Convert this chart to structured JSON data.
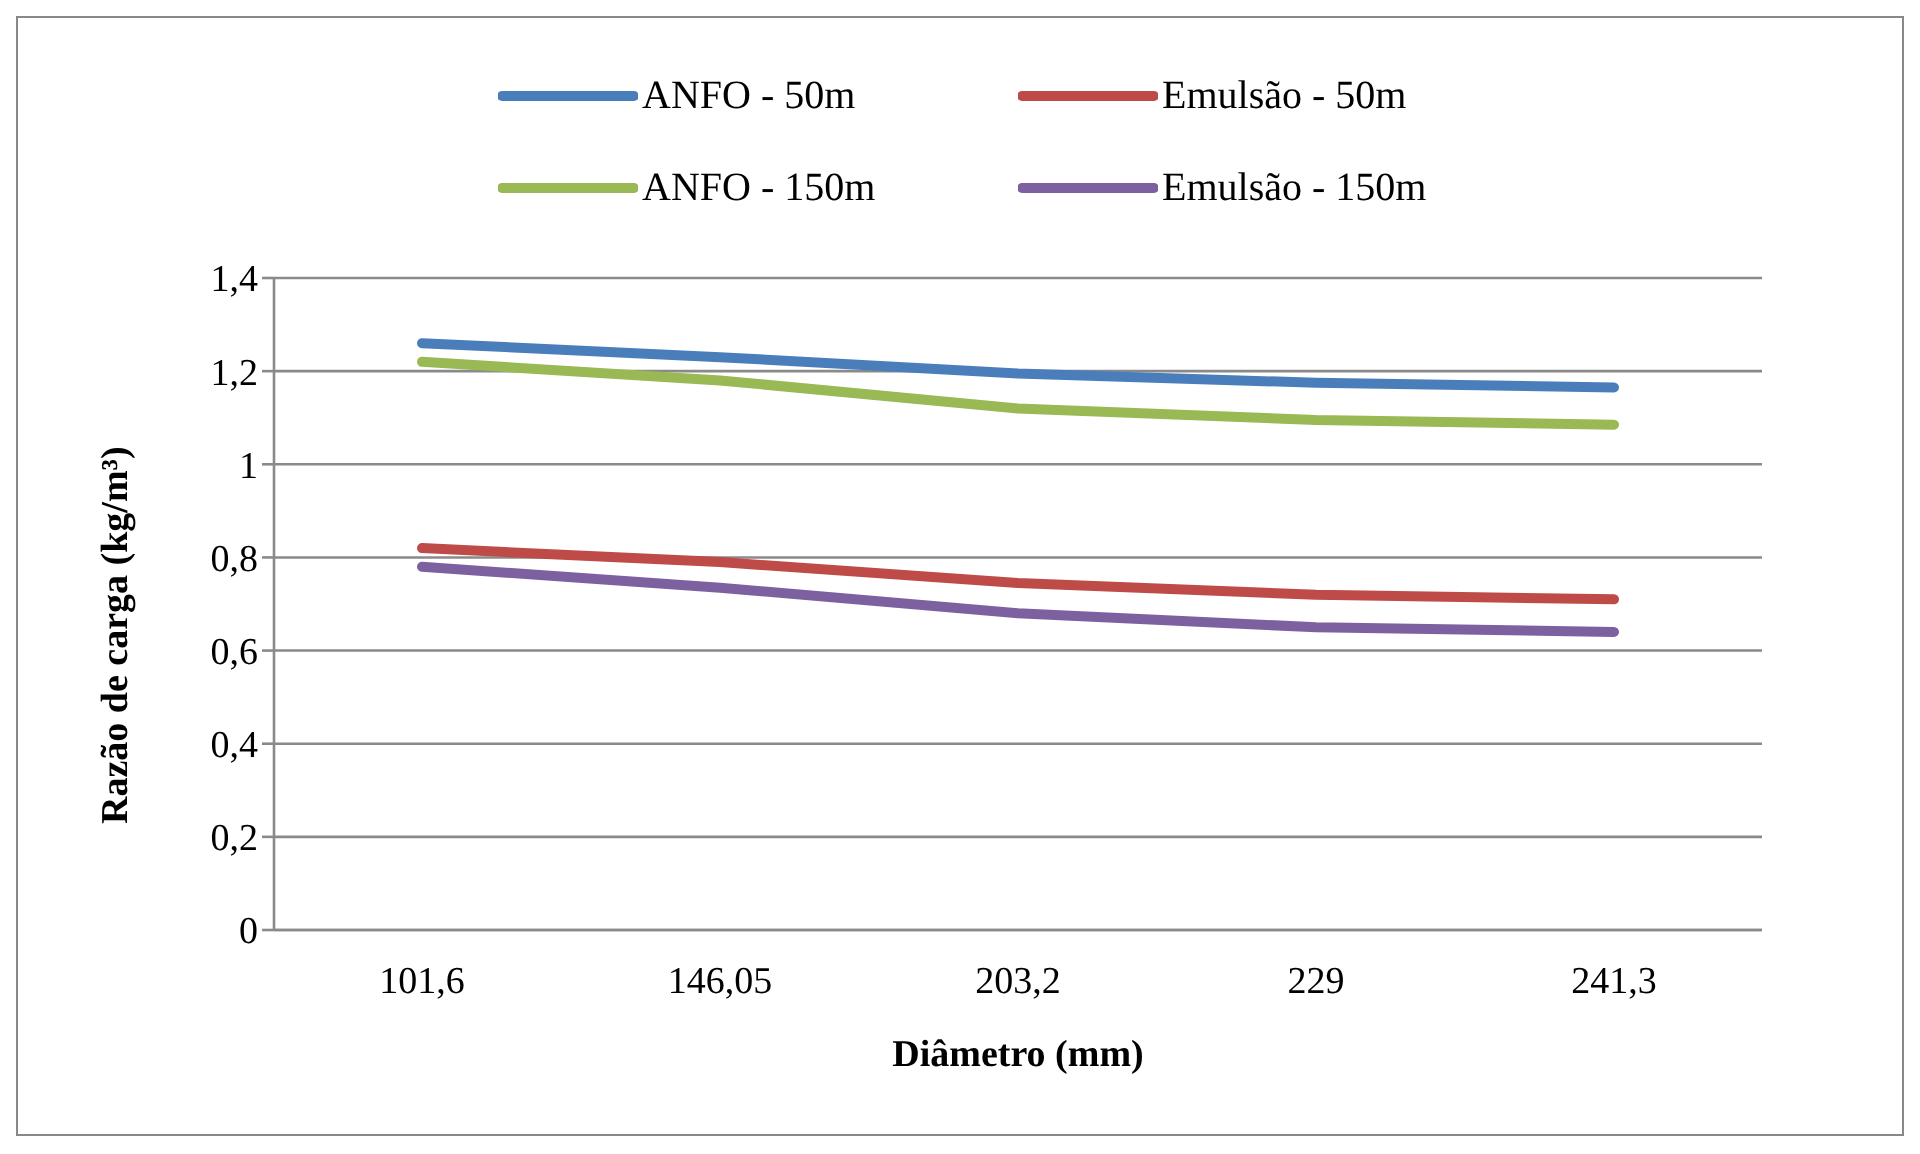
{
  "chart_data": {
    "type": "line",
    "xlabel": "Diâmetro (mm)",
    "ylabel": "Razão de carga (kg/m³)",
    "categories": [
      "101,6",
      "146,05",
      "203,2",
      "229",
      "241,3"
    ],
    "series": [
      {
        "name": "ANFO - 50m",
        "color": "#4a7ebb",
        "values": [
          1.26,
          1.23,
          1.195,
          1.175,
          1.165
        ]
      },
      {
        "name": "Emulsão - 50m",
        "color": "#be4b48",
        "values": [
          0.82,
          0.79,
          0.745,
          0.72,
          0.71
        ]
      },
      {
        "name": "ANFO - 150m",
        "color": "#98b954",
        "values": [
          1.22,
          1.18,
          1.12,
          1.095,
          1.085
        ]
      },
      {
        "name": "Emulsão - 150m",
        "color": "#7d60a0",
        "values": [
          0.78,
          0.735,
          0.68,
          0.65,
          0.64
        ]
      }
    ],
    "ylim": [
      0,
      1.4
    ],
    "yticks": [
      {
        "value": 0,
        "label": "0"
      },
      {
        "value": 0.2,
        "label": "0,2"
      },
      {
        "value": 0.4,
        "label": "0,4"
      },
      {
        "value": 0.6,
        "label": "0,6"
      },
      {
        "value": 0.8,
        "label": "0,8"
      },
      {
        "value": 1,
        "label": "1"
      },
      {
        "value": 1.2,
        "label": "1,2"
      },
      {
        "value": 1.4,
        "label": "1,4"
      }
    ],
    "grid": "y",
    "legend": "top",
    "marker": "none",
    "line_style": "solid"
  }
}
